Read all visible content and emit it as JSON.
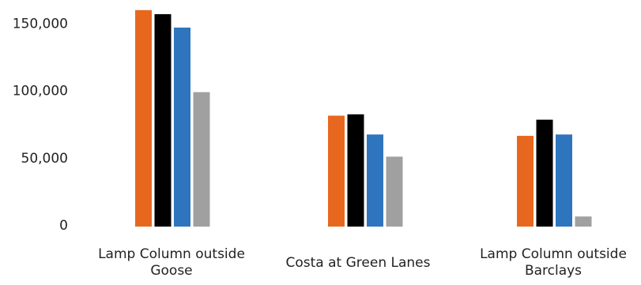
{
  "chart_data": {
    "type": "bar",
    "categories": [
      [
        "Lamp Column outside",
        "Goose"
      ],
      [
        "Costa at Green Lanes"
      ],
      [
        "Lamp Column outside",
        "Barclays"
      ]
    ],
    "series": [
      {
        "color": "#E8671F",
        "values": [
          161000,
          82500,
          67500
        ]
      },
      {
        "color": "#000000",
        "values": [
          158000,
          83500,
          79500
        ]
      },
      {
        "color": "#2E75BE",
        "values": [
          148000,
          68500,
          68500
        ]
      },
      {
        "color": "#A0A0A0",
        "values": [
          100000,
          52000,
          7500
        ]
      }
    ],
    "y_ticks": [
      0,
      50000,
      100000,
      150000
    ],
    "y_tick_labels": [
      "0",
      "50,000",
      "100,000",
      "150,000"
    ],
    "ylim": [
      0,
      165000
    ],
    "grid": false,
    "legend": "none"
  }
}
